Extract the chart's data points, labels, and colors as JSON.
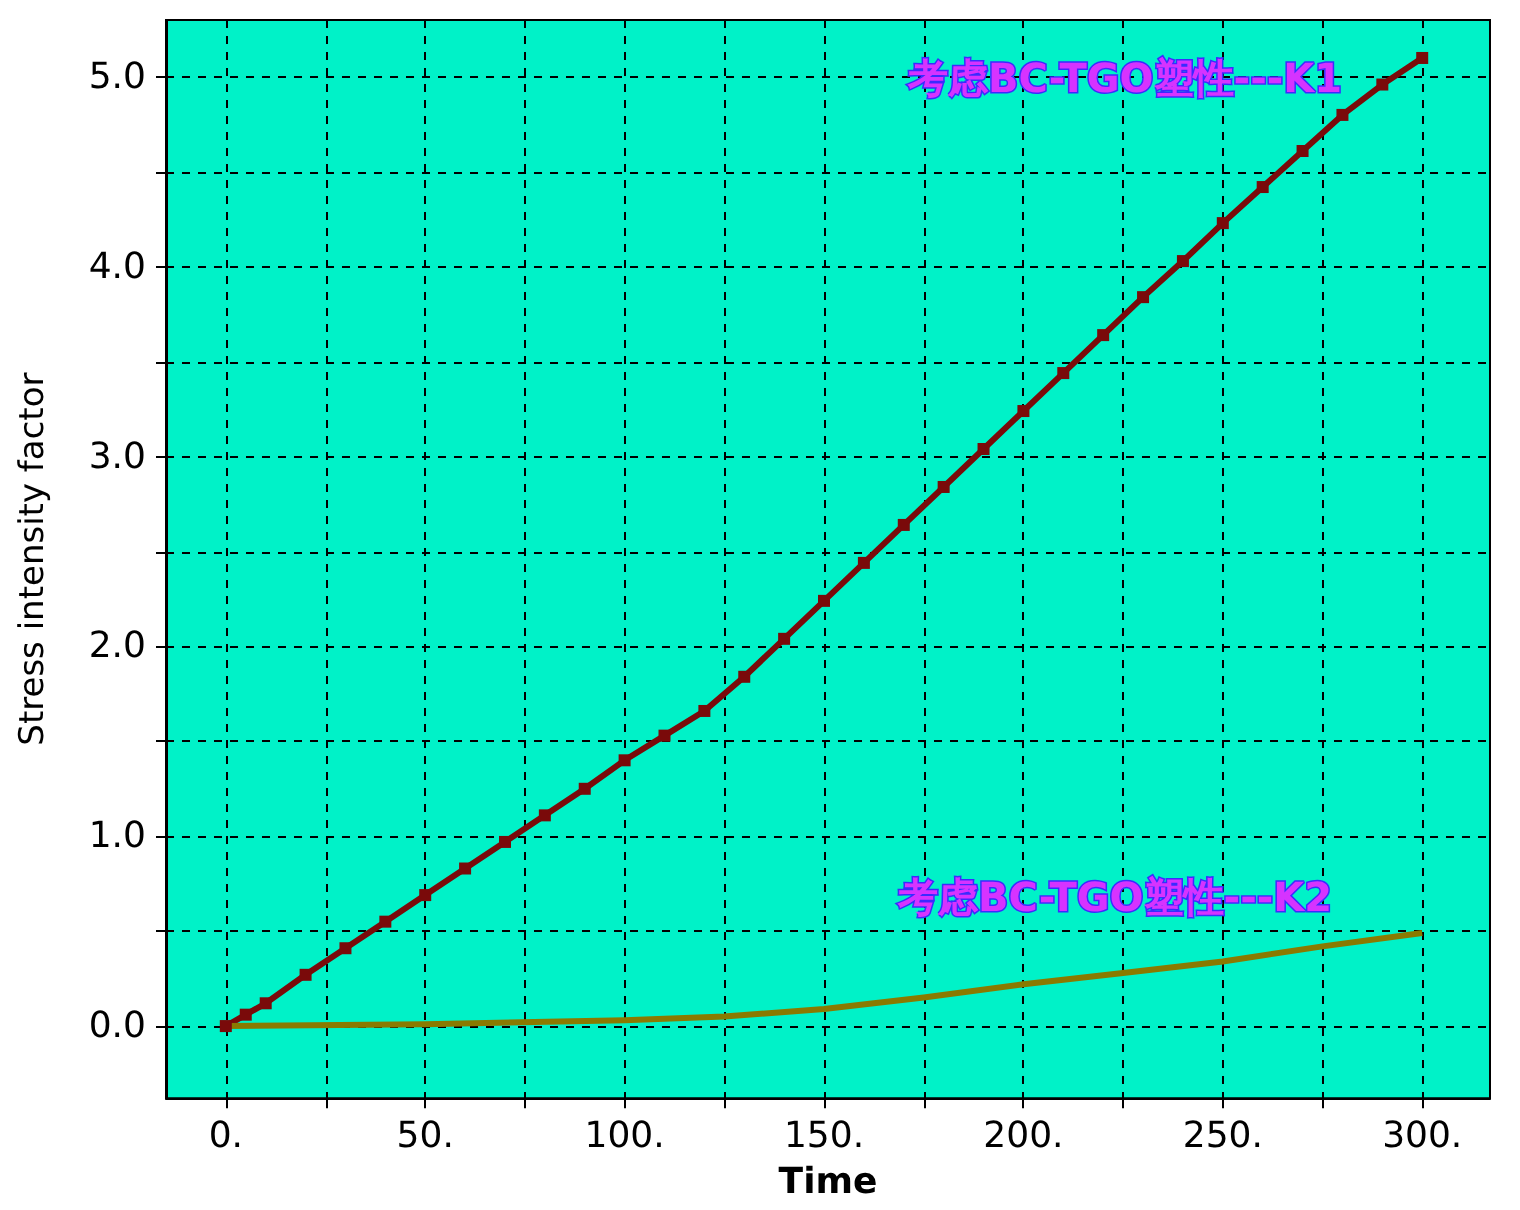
{
  "chart_data": {
    "type": "line",
    "xlabel": "Time",
    "ylabel": "Stress intensity factor",
    "xlim": [
      -15,
      317
    ],
    "ylim": [
      -0.38,
      5.3
    ],
    "xticks": [
      {
        "value": 0,
        "label": "0."
      },
      {
        "value": 25,
        "label": null
      },
      {
        "value": 50,
        "label": "50."
      },
      {
        "value": 75,
        "label": null
      },
      {
        "value": 100,
        "label": "100."
      },
      {
        "value": 125,
        "label": null
      },
      {
        "value": 150,
        "label": "150."
      },
      {
        "value": 175,
        "label": null
      },
      {
        "value": 200,
        "label": "200."
      },
      {
        "value": 225,
        "label": null
      },
      {
        "value": 250,
        "label": "250."
      },
      {
        "value": 275,
        "label": null
      },
      {
        "value": 300,
        "label": "300."
      }
    ],
    "yticks": [
      {
        "value": 0,
        "label": "0.0"
      },
      {
        "value": 0.5,
        "label": null
      },
      {
        "value": 1,
        "label": "1.0"
      },
      {
        "value": 1.5,
        "label": null
      },
      {
        "value": 2,
        "label": "2.0"
      },
      {
        "value": 2.5,
        "label": null
      },
      {
        "value": 3,
        "label": "3.0"
      },
      {
        "value": 3.5,
        "label": null
      },
      {
        "value": 4,
        "label": "4.0"
      },
      {
        "value": 4.5,
        "label": null
      },
      {
        "value": 5,
        "label": "5.0"
      }
    ],
    "grid": true,
    "legend": false,
    "series": [
      {
        "name": "考虑BC-TGO塑性---K1",
        "color": "#7a0a0a",
        "marker": "square",
        "x": [
          0,
          5,
          10,
          20,
          30,
          40,
          50,
          60,
          70,
          80,
          90,
          100,
          110,
          120,
          130,
          140,
          150,
          160,
          170,
          180,
          190,
          200,
          210,
          220,
          230,
          240,
          250,
          260,
          270,
          280,
          290,
          300
        ],
        "values": [
          0.0,
          0.06,
          0.12,
          0.27,
          0.41,
          0.55,
          0.69,
          0.83,
          0.97,
          1.11,
          1.25,
          1.4,
          1.53,
          1.66,
          1.84,
          2.04,
          2.24,
          2.44,
          2.64,
          2.84,
          3.04,
          3.24,
          3.44,
          3.64,
          3.84,
          4.03,
          4.23,
          4.42,
          4.61,
          4.8,
          4.96,
          5.1
        ]
      },
      {
        "name": "考虑BC-TGO塑性---K2",
        "color": "#8a7a00",
        "marker": "none",
        "x": [
          0,
          50,
          100,
          125,
          150,
          175,
          200,
          225,
          250,
          275,
          300
        ],
        "values": [
          0,
          0.01,
          0.03,
          0.05,
          0.09,
          0.15,
          0.22,
          0.28,
          0.34,
          0.42,
          0.49
        ]
      }
    ]
  }
}
